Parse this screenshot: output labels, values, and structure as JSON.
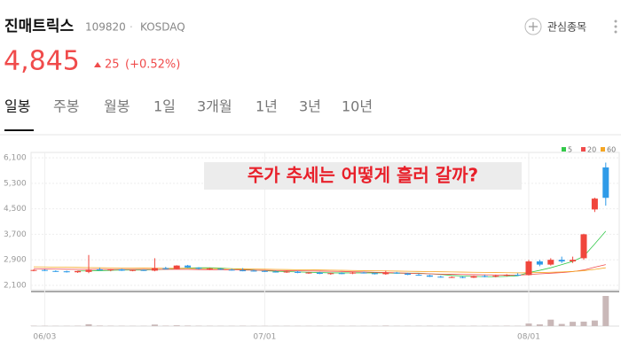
{
  "header": {
    "name": "진매트릭스",
    "code": "109820",
    "separator": "·",
    "market": "KOSDAQ",
    "watch": "관심종목",
    "price": "4,845",
    "change": "25",
    "change_pct": "(+0.52%)"
  },
  "tabs": [
    "일봉",
    "주봉",
    "월봉",
    "1일",
    "3개월",
    "1년",
    "3년",
    "10년"
  ],
  "chart_data": {
    "type": "candlestick",
    "annotation": "주가 추세는 어떻게 흘러 갈까?",
    "categories": [
      null,
      "06/03",
      null,
      null,
      null,
      null,
      null,
      null,
      null,
      null,
      null,
      null,
      null,
      null,
      null,
      null,
      null,
      null,
      null,
      null,
      null,
      "07/01",
      null,
      null,
      null,
      null,
      null,
      null,
      null,
      null,
      null,
      null,
      null,
      null,
      null,
      null,
      null,
      null,
      null,
      null,
      null,
      null,
      null,
      null,
      null,
      "08/01",
      null,
      null,
      null,
      null,
      null,
      null,
      null
    ],
    "open": [
      2560,
      2580,
      2550,
      2540,
      2510,
      2520,
      2600,
      2570,
      2600,
      2560,
      2580,
      2560,
      2640,
      2610,
      2720,
      2650,
      2620,
      2620,
      2590,
      2570,
      2560,
      2550,
      2530,
      2520,
      2530,
      2490,
      2500,
      2460,
      2480,
      2470,
      2500,
      2480,
      2450,
      2500,
      2470,
      2430,
      2410,
      2370,
      2350,
      2360,
      2340,
      2390,
      2370,
      2400,
      2430,
      2420,
      2850,
      2750,
      2900,
      2850,
      2950,
      4480,
      5800
    ],
    "high": [
      2600,
      2600,
      2570,
      2560,
      2560,
      3050,
      2650,
      2610,
      2620,
      2590,
      2600,
      2950,
      2680,
      2730,
      2740,
      2670,
      2650,
      2640,
      2620,
      2640,
      2590,
      2570,
      2560,
      2550,
      2550,
      2520,
      2520,
      2500,
      2510,
      2520,
      2530,
      2500,
      2560,
      2520,
      2490,
      2460,
      2430,
      2400,
      2380,
      2380,
      2400,
      2430,
      2420,
      2450,
      2480,
      2900,
      2900,
      2950,
      3000,
      3000,
      3720,
      4850,
      5950
    ],
    "low": [
      2540,
      2550,
      2520,
      2500,
      2490,
      2480,
      2560,
      2540,
      2550,
      2540,
      2550,
      2540,
      2590,
      2600,
      2640,
      2600,
      2580,
      2580,
      2560,
      2540,
      2530,
      2520,
      2500,
      2490,
      2480,
      2460,
      2450,
      2430,
      2450,
      2450,
      2470,
      2440,
      2430,
      2460,
      2420,
      2400,
      2360,
      2340,
      2330,
      2320,
      2330,
      2350,
      2350,
      2380,
      2400,
      2410,
      2700,
      2720,
      2800,
      2800,
      2900,
      4400,
      4600
    ],
    "close": [
      2580,
      2560,
      2540,
      2510,
      2550,
      2580,
      2570,
      2600,
      2560,
      2580,
      2560,
      2640,
      2610,
      2720,
      2660,
      2620,
      2630,
      2590,
      2570,
      2560,
      2550,
      2530,
      2520,
      2530,
      2490,
      2500,
      2460,
      2480,
      2470,
      2500,
      2480,
      2450,
      2500,
      2470,
      2430,
      2410,
      2370,
      2350,
      2360,
      2340,
      2390,
      2370,
      2400,
      2430,
      2420,
      2850,
      2750,
      2900,
      2850,
      2900,
      3700,
      4820,
      4845
    ],
    "volume": [
      40000,
      35000,
      30000,
      30000,
      40000,
      220000,
      60000,
      40000,
      35000,
      30000,
      30000,
      180000,
      50000,
      90000,
      60000,
      40000,
      35000,
      30000,
      30000,
      40000,
      30000,
      25000,
      25000,
      30000,
      25000,
      25000,
      30000,
      25000,
      25000,
      30000,
      25000,
      25000,
      60000,
      30000,
      30000,
      30000,
      35000,
      30000,
      25000,
      25000,
      35000,
      30000,
      30000,
      40000,
      30000,
      300000,
      200000,
      750000,
      250000,
      500000,
      520000,
      650000,
      3500000
    ],
    "up_color": "#f0463c",
    "down_color": "#2f9be8",
    "volume_color": "#c9b8b8",
    "moving_averages": [
      {
        "name": "5",
        "color": "#33c94a",
        "values": [
          null,
          null,
          null,
          null,
          2550,
          2550,
          2560,
          2570,
          2580,
          2580,
          2580,
          2590,
          2600,
          2630,
          2640,
          2650,
          2650,
          2640,
          2620,
          2600,
          2580,
          2560,
          2540,
          2530,
          2520,
          2510,
          2500,
          2490,
          2490,
          2490,
          2490,
          2490,
          2490,
          2480,
          2480,
          2480,
          2460,
          2440,
          2410,
          2390,
          2380,
          2370,
          2370,
          2380,
          2400,
          2500,
          2570,
          2650,
          2750,
          2850,
          3010,
          3400,
          3800
        ]
      },
      {
        "name": "20",
        "color": "#f04b4b",
        "values": [
          2620,
          2615,
          2610,
          2605,
          2600,
          2600,
          2600,
          2600,
          2600,
          2600,
          2600,
          2600,
          2600,
          2600,
          2600,
          2595,
          2590,
          2590,
          2585,
          2580,
          2575,
          2570,
          2565,
          2560,
          2555,
          2550,
          2545,
          2540,
          2535,
          2525,
          2520,
          2510,
          2500,
          2490,
          2480,
          2470,
          2460,
          2450,
          2445,
          2440,
          2435,
          2430,
          2425,
          2420,
          2415,
          2440,
          2460,
          2480,
          2500,
          2530,
          2580,
          2670,
          2750
        ]
      },
      {
        "name": "60",
        "color": "#f5a623",
        "values": [
          2680,
          2675,
          2670,
          2665,
          2660,
          2655,
          2650,
          2648,
          2645,
          2642,
          2640,
          2638,
          2635,
          2632,
          2630,
          2628,
          2625,
          2622,
          2620,
          2615,
          2610,
          2605,
          2600,
          2595,
          2590,
          2585,
          2580,
          2575,
          2570,
          2565,
          2560,
          2555,
          2550,
          2545,
          2540,
          2535,
          2530,
          2525,
          2520,
          2515,
          2510,
          2505,
          2500,
          2495,
          2490,
          2495,
          2500,
          2510,
          2520,
          2535,
          2560,
          2600,
          2650
        ]
      }
    ],
    "ylim": [
      1960,
      6270
    ],
    "yticks": [
      {
        "value": 2100,
        "label": "2,100"
      },
      {
        "value": 2900,
        "label": "2,900"
      },
      {
        "value": 3700,
        "label": "3,700"
      },
      {
        "value": 4500,
        "label": "4,500"
      },
      {
        "value": 5300,
        "label": "5,300"
      },
      {
        "value": 6100,
        "label": "6,100"
      }
    ],
    "grid": true
  }
}
